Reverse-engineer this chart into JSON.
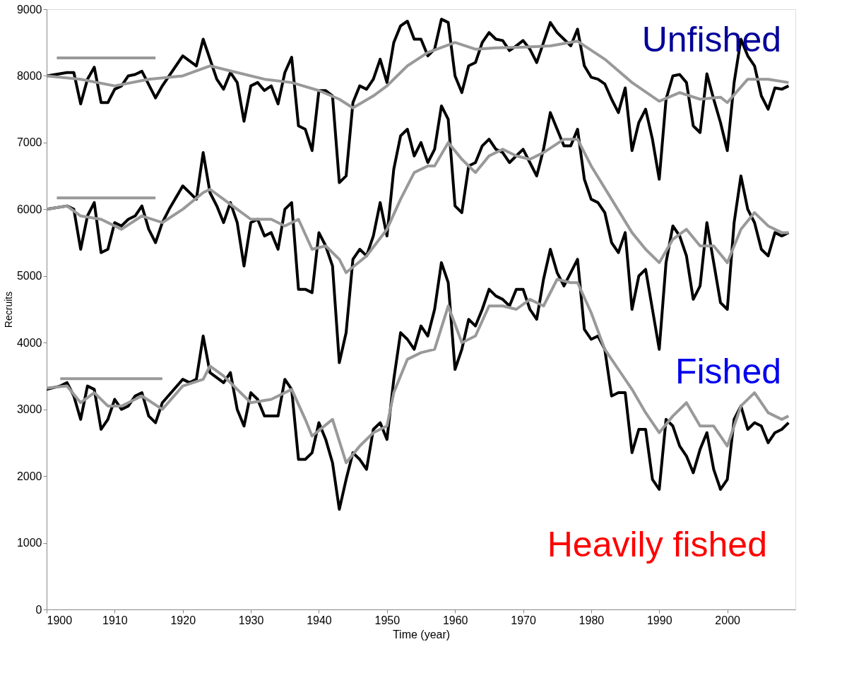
{
  "chart_data": {
    "type": "line",
    "xlabel": "Time (year)",
    "ylabel": "Recruits",
    "xlim": [
      1900,
      2010
    ],
    "xticks": [
      1900,
      1910,
      1920,
      1930,
      1940,
      1950,
      1960,
      1970,
      1980,
      1990,
      2000
    ],
    "ylim": [
      0,
      9000
    ],
    "yticks": [
      0,
      1000,
      2000,
      3000,
      4000,
      5000,
      6000,
      7000,
      8000,
      9000
    ],
    "grid": false,
    "line_style": "solid",
    "marker": "none",
    "annotations": [
      "Unfished",
      "Fished",
      "Heavily fished"
    ],
    "series": [
      {
        "color": "#000000",
        "x": [
          1900,
          1903,
          1904,
          1905,
          1906,
          1907,
          1908,
          1909,
          1910,
          1911,
          1912,
          1913,
          1914,
          1916,
          1917,
          1918,
          1920,
          1922,
          1923,
          1925,
          1926,
          1927,
          1928,
          1929,
          1930,
          1931,
          1932,
          1933,
          1934,
          1935,
          1936,
          1937,
          1938,
          1939,
          1940,
          1941,
          1942,
          1943,
          1944,
          1945,
          1946,
          1947,
          1948,
          1949,
          1950,
          1951,
          1952,
          1953,
          1954,
          1955,
          1956,
          1957,
          1958,
          1959,
          1960,
          1961,
          1962,
          1963,
          1964,
          1965,
          1966,
          1967,
          1968,
          1969,
          1970,
          1971,
          1972,
          1973,
          1974,
          1975,
          1976,
          1977,
          1978,
          1979,
          1980,
          1981,
          1982,
          1983,
          1984,
          1985,
          1986,
          1987,
          1988,
          1989,
          1990,
          1991,
          1992,
          1993,
          1994,
          1995,
          1996,
          1997,
          1998,
          1999,
          2000,
          2001,
          2002,
          2003,
          2004,
          2005,
          2006,
          2007,
          2008,
          2009
        ],
        "values": [
          8000,
          8050,
          8050,
          7580,
          7950,
          8130,
          7600,
          7600,
          7800,
          7850,
          8000,
          8020,
          8070,
          7670,
          7850,
          8000,
          8300,
          8150,
          8550,
          7950,
          7800,
          8050,
          7900,
          7320,
          7850,
          7900,
          7780,
          7850,
          7580,
          8050,
          8280,
          7250,
          7200,
          6880,
          7780,
          7780,
          7700,
          6400,
          6500,
          7600,
          7850,
          7800,
          7950,
          8250,
          7900,
          8500,
          8750,
          8820,
          8550,
          8550,
          8300,
          8400,
          8850,
          8800,
          8000,
          7750,
          8150,
          8200,
          8500,
          8650,
          8550,
          8530,
          8380,
          8450,
          8530,
          8400,
          8200,
          8500,
          8800,
          8650,
          8550,
          8450,
          8700,
          8150,
          7980,
          7950,
          7880,
          7650,
          7450,
          7820,
          6880,
          7300,
          7500,
          7050,
          6450,
          7650,
          8000,
          8020,
          7900,
          7250,
          7150,
          8030,
          7650,
          7300,
          6880,
          7900,
          8550,
          8300,
          8150,
          7700,
          7500,
          7820,
          7800,
          7850
        ]
      },
      {
        "color": "#999999",
        "x": [
          1900,
          1905,
          1910,
          1915,
          1920,
          1924,
          1928,
          1932,
          1936,
          1940,
          1943,
          1945,
          1948,
          1950,
          1953,
          1956,
          1960,
          1963,
          1966,
          1970,
          1974,
          1978,
          1982,
          1986,
          1990,
          1993,
          1996,
          1999,
          2000,
          2003,
          2006,
          2009
        ],
        "values": [
          8000,
          7950,
          7850,
          7950,
          8000,
          8150,
          8050,
          7950,
          7900,
          7780,
          7650,
          7520,
          7700,
          7850,
          8150,
          8350,
          8500,
          8400,
          8420,
          8430,
          8450,
          8520,
          8250,
          7900,
          7620,
          7750,
          7650,
          7680,
          7600,
          7950,
          7950,
          7900
        ]
      },
      {
        "color": "#000000",
        "x": [
          1900,
          1903,
          1904,
          1905,
          1906,
          1907,
          1908,
          1909,
          1910,
          1911,
          1912,
          1913,
          1914,
          1915,
          1916,
          1917,
          1918,
          1920,
          1922,
          1923,
          1924,
          1925,
          1926,
          1927,
          1928,
          1929,
          1930,
          1931,
          1932,
          1933,
          1934,
          1935,
          1936,
          1937,
          1938,
          1939,
          1940,
          1941,
          1942,
          1943,
          1944,
          1945,
          1946,
          1947,
          1948,
          1949,
          1950,
          1951,
          1952,
          1953,
          1954,
          1955,
          1956,
          1957,
          1958,
          1959,
          1960,
          1961,
          1962,
          1963,
          1964,
          1965,
          1966,
          1967,
          1968,
          1969,
          1970,
          1971,
          1972,
          1973,
          1974,
          1975,
          1976,
          1977,
          1978,
          1979,
          1980,
          1981,
          1982,
          1983,
          1984,
          1985,
          1986,
          1987,
          1988,
          1989,
          1990,
          1991,
          1992,
          1993,
          1994,
          1995,
          1996,
          1997,
          1998,
          1999,
          2000,
          2001,
          2002,
          2003,
          2004,
          2005,
          2006,
          2007,
          2008,
          2009
        ],
        "values": [
          6000,
          6050,
          6000,
          5400,
          5900,
          6100,
          5350,
          5400,
          5800,
          5750,
          5850,
          5900,
          6050,
          5700,
          5500,
          5800,
          6000,
          6350,
          6150,
          6850,
          6250,
          6050,
          5800,
          6100,
          5800,
          5150,
          5800,
          5850,
          5600,
          5650,
          5400,
          6000,
          6100,
          4800,
          4800,
          4750,
          5650,
          5450,
          5150,
          3700,
          4150,
          5250,
          5400,
          5300,
          5600,
          6100,
          5600,
          6600,
          7100,
          7200,
          6800,
          7000,
          6700,
          6900,
          7550,
          7350,
          6050,
          5950,
          6650,
          6700,
          6950,
          7050,
          6900,
          6850,
          6700,
          6800,
          6900,
          6700,
          6500,
          6900,
          7450,
          7200,
          6950,
          6950,
          7200,
          6450,
          6150,
          6100,
          5950,
          5500,
          5350,
          5650,
          4500,
          5000,
          5100,
          4500,
          3900,
          5200,
          5750,
          5600,
          5300,
          4650,
          4850,
          5800,
          5200,
          4600,
          4500,
          5800,
          6500,
          6000,
          5800,
          5400,
          5300,
          5650,
          5600,
          5650
        ]
      },
      {
        "color": "#999999",
        "x": [
          1900,
          1903,
          1905,
          1908,
          1911,
          1914,
          1917,
          1920,
          1923,
          1924,
          1926,
          1928,
          1930,
          1933,
          1935,
          1937,
          1939,
          1941,
          1943,
          1944,
          1947,
          1950,
          1952,
          1954,
          1956,
          1957,
          1959,
          1961,
          1963,
          1965,
          1967,
          1969,
          1971,
          1973,
          1976,
          1978,
          1980,
          1983,
          1986,
          1988,
          1990,
          1992,
          1994,
          1996,
          1998,
          2000,
          2002,
          2004,
          2006,
          2008,
          2009
        ],
        "values": [
          6000,
          6050,
          5900,
          5850,
          5700,
          5900,
          5800,
          6000,
          6250,
          6300,
          6150,
          6000,
          5850,
          5850,
          5750,
          5850,
          5400,
          5450,
          5250,
          5050,
          5300,
          5700,
          6150,
          6550,
          6650,
          6650,
          7000,
          6750,
          6550,
          6800,
          6900,
          6800,
          6750,
          6850,
          7050,
          7050,
          6650,
          6150,
          5650,
          5400,
          5200,
          5550,
          5700,
          5450,
          5450,
          5200,
          5700,
          5950,
          5750,
          5650,
          5650
        ]
      },
      {
        "color": "#000000",
        "x": [
          1900,
          1902,
          1903,
          1904,
          1905,
          1906,
          1907,
          1908,
          1909,
          1910,
          1911,
          1912,
          1913,
          1914,
          1915,
          1916,
          1917,
          1920,
          1921,
          1922,
          1923,
          1924,
          1926,
          1927,
          1928,
          1929,
          1930,
          1931,
          1932,
          1934,
          1935,
          1936,
          1937,
          1938,
          1939,
          1940,
          1941,
          1942,
          1943,
          1944,
          1945,
          1946,
          1947,
          1948,
          1949,
          1950,
          1951,
          1952,
          1953,
          1954,
          1955,
          1956,
          1957,
          1958,
          1959,
          1960,
          1961,
          1962,
          1963,
          1964,
          1965,
          1966,
          1967,
          1968,
          1969,
          1970,
          1971,
          1972,
          1973,
          1974,
          1975,
          1976,
          1977,
          1978,
          1979,
          1980,
          1981,
          1982,
          1983,
          1984,
          1985,
          1986,
          1987,
          1988,
          1989,
          1990,
          1991,
          1992,
          1993,
          1994,
          1995,
          1996,
          1997,
          1998,
          1999,
          2000,
          2001,
          2002,
          2003,
          2004,
          2005,
          2006,
          2007,
          2008,
          2009
        ],
        "values": [
          3300,
          3350,
          3400,
          3200,
          2850,
          3350,
          3300,
          2700,
          2850,
          3150,
          3000,
          3050,
          3200,
          3250,
          2900,
          2800,
          3100,
          3450,
          3400,
          3450,
          4100,
          3550,
          3400,
          3550,
          3000,
          2750,
          3250,
          3150,
          2900,
          2900,
          3450,
          3300,
          2250,
          2250,
          2350,
          2800,
          2550,
          2200,
          1500,
          1950,
          2350,
          2250,
          2100,
          2700,
          2800,
          2550,
          3450,
          4150,
          4050,
          3900,
          4250,
          4100,
          4500,
          5200,
          4900,
          3600,
          3900,
          4350,
          4250,
          4500,
          4800,
          4700,
          4650,
          4550,
          4800,
          4800,
          4500,
          4350,
          4950,
          5400,
          5050,
          4850,
          5050,
          5250,
          4200,
          4050,
          4100,
          3900,
          3200,
          3250,
          3250,
          2350,
          2700,
          2700,
          1950,
          1800,
          2850,
          2750,
          2450,
          2300,
          2050,
          2400,
          2650,
          2100,
          1800,
          1950,
          2850,
          3050,
          2700,
          2800,
          2750,
          2500,
          2650,
          2700,
          2800
        ]
      },
      {
        "color": "#999999",
        "x": [
          1900,
          1903,
          1905,
          1907,
          1909,
          1911,
          1914,
          1917,
          1920,
          1923,
          1924,
          1926,
          1928,
          1930,
          1933,
          1936,
          1938,
          1939,
          1942,
          1944,
          1946,
          1948,
          1950,
          1951,
          1953,
          1955,
          1957,
          1959,
          1961,
          1963,
          1965,
          1967,
          1969,
          1971,
          1973,
          1975,
          1977,
          1978,
          1980,
          1982,
          1984,
          1986,
          1988,
          1990,
          1992,
          1994,
          1996,
          1998,
          2000,
          2002,
          2004,
          2006,
          2008,
          2009
        ],
        "values": [
          3320,
          3350,
          3100,
          3250,
          3050,
          3050,
          3200,
          3000,
          3350,
          3450,
          3650,
          3500,
          3300,
          3100,
          3150,
          3300,
          2850,
          2600,
          2850,
          2200,
          2450,
          2650,
          2750,
          3250,
          3750,
          3850,
          3900,
          4550,
          4000,
          4100,
          4550,
          4550,
          4500,
          4650,
          4550,
          4950,
          4900,
          4900,
          4450,
          3900,
          3600,
          3300,
          2950,
          2650,
          2900,
          3100,
          2750,
          2750,
          2450,
          3050,
          3250,
          2950,
          2850,
          2900
        ]
      },
      {
        "color": "#999999",
        "x": [
          1901.5,
          1916
        ],
        "values": [
          8270,
          8270
        ]
      },
      {
        "color": "#999999",
        "x": [
          1901.5,
          1916
        ],
        "values": [
          6170,
          6170
        ]
      },
      {
        "color": "#999999",
        "x": [
          1902,
          1917
        ],
        "values": [
          3460,
          3460
        ]
      }
    ]
  }
}
